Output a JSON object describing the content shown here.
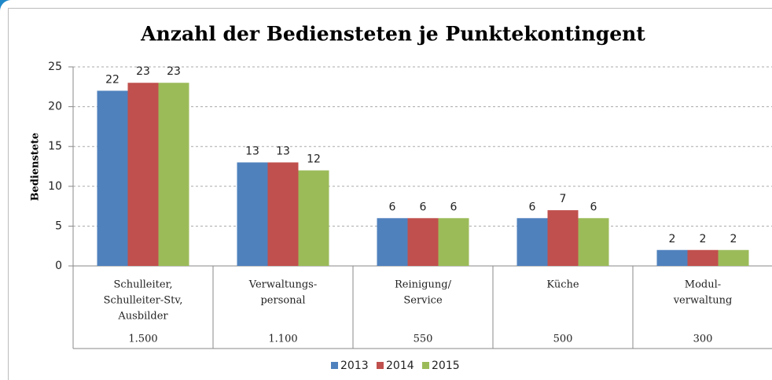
{
  "chart_data": {
    "type": "bar",
    "title": "Anzahl der Bediensteten je Punktekontingent",
    "y_label": "Bedienstete",
    "categories": [
      [
        "Schulleiter,",
        "Schulleiter-Stv,",
        "Ausbilder"
      ],
      [
        "Verwaltungs-",
        "personal"
      ],
      [
        "Reinigung/",
        "Service"
      ],
      [
        "Küche"
      ],
      [
        "Modul-",
        "verwaltung"
      ]
    ],
    "category_points": [
      "1.500",
      "1.100",
      "550",
      "500",
      "300"
    ],
    "series": [
      {
        "name": "2013",
        "color": "#4f81bd",
        "values": [
          22,
          13,
          6,
          6,
          2
        ]
      },
      {
        "name": "2014",
        "color": "#c0504d",
        "values": [
          23,
          13,
          6,
          7,
          2
        ]
      },
      {
        "name": "2015",
        "color": "#9bbb59",
        "values": [
          23,
          12,
          6,
          6,
          2
        ]
      }
    ],
    "ylim": [
      0,
      25
    ],
    "yticks": [
      0,
      5,
      10,
      15,
      20,
      25
    ],
    "grid": true,
    "legend": "bottom"
  }
}
